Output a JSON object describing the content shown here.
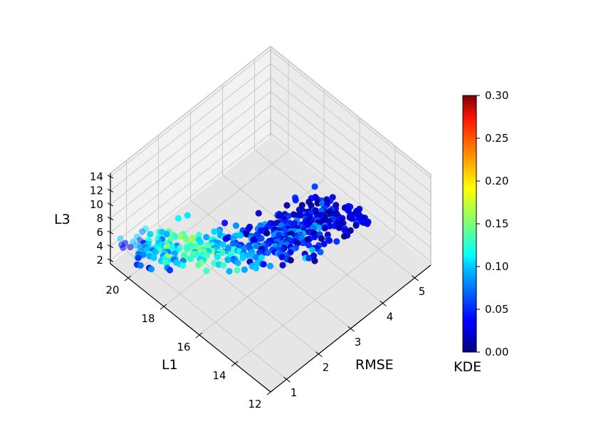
{
  "chart_data": {
    "type": "scatter",
    "projection": "3d",
    "title": "",
    "axes": {
      "x": {
        "label": "RMSE",
        "range": [
          0.5,
          5.5
        ],
        "ticks": [
          "1",
          "2",
          "3",
          "4",
          "5"
        ],
        "tick_values": [
          1,
          2,
          3,
          4,
          5
        ]
      },
      "y": {
        "label": "L1",
        "range": [
          12,
          21
        ],
        "ticks": [
          "12",
          "14",
          "16",
          "18",
          "20"
        ],
        "tick_values": [
          12,
          14,
          16,
          18,
          20
        ]
      },
      "z": {
        "label": "L3",
        "range": [
          1.5,
          14.5
        ],
        "ticks": [
          "2",
          "4",
          "6",
          "8",
          "10",
          "12",
          "14"
        ],
        "tick_values": [
          2,
          4,
          6,
          8,
          10,
          12,
          14
        ]
      }
    },
    "colorbar": {
      "label": "KDE",
      "colormap": "jet",
      "range": [
        0.0,
        0.3
      ],
      "ticks": [
        "0.00",
        "0.05",
        "0.10",
        "0.15",
        "0.20",
        "0.25",
        "0.30"
      ],
      "tick_values": [
        0,
        0.05,
        0.1,
        0.15,
        0.2,
        0.25,
        0.3
      ]
    },
    "grid": true,
    "points_approx_count": 520,
    "point_trend": [
      {
        "rmse": 0.8,
        "l1": 20.5,
        "kde": 0.06
      },
      {
        "rmse": 1.4,
        "l1": 19.6,
        "kde": 0.11
      },
      {
        "rmse": 2.0,
        "l1": 18.6,
        "kde": 0.14
      },
      {
        "rmse": 2.6,
        "l1": 17.6,
        "kde": 0.08
      },
      {
        "rmse": 3.2,
        "l1": 16.9,
        "kde": 0.04
      },
      {
        "rmse": 3.8,
        "l1": 16.6,
        "kde": 0.05
      },
      {
        "rmse": 4.4,
        "l1": 16.4,
        "kde": 0.03
      },
      {
        "rmse": 5.0,
        "l1": 16.0,
        "kde": 0.02
      }
    ]
  }
}
